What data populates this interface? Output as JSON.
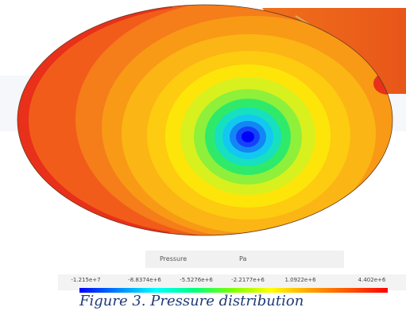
{
  "legend": {
    "quantity": "Pressure",
    "unit": "Pa",
    "ticks": [
      "-1.215e+7",
      "-8.8374e+6",
      "-5.5276e+6",
      "-2.2177e+6",
      "1.0922e+6",
      "4.402e+6"
    ]
  },
  "caption": "Figure 3. Pressure distribution",
  "colors": {
    "contour_outer": "#e8401a",
    "contour_mid": "#ffae00",
    "contour_core": "#0000ff",
    "caption_text": "#1f3a7a"
  }
}
